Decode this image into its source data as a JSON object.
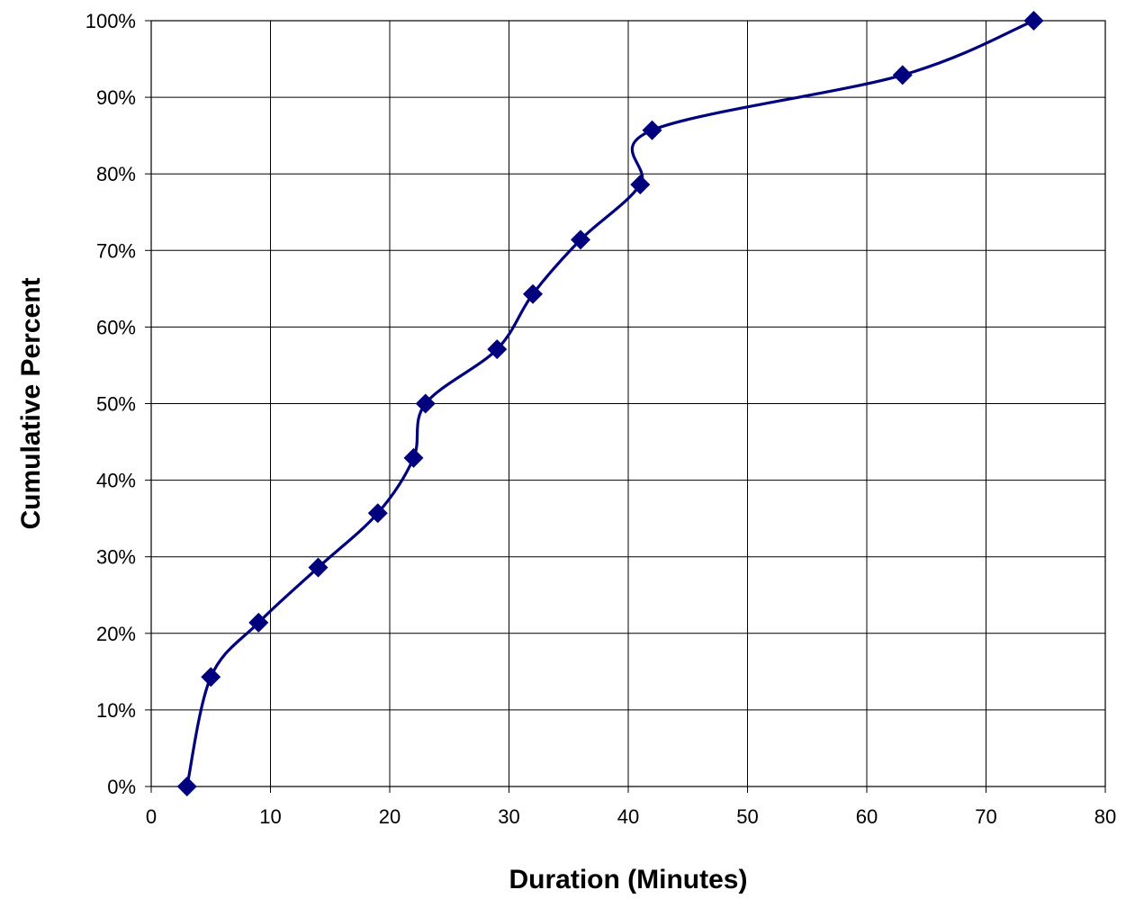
{
  "chart_data": {
    "type": "line",
    "title": "",
    "xlabel": "Duration (Minutes)",
    "ylabel": "Cumulative Percent",
    "xlim": [
      0,
      80
    ],
    "ylim": [
      0,
      100
    ],
    "x_ticks": [
      0,
      10,
      20,
      30,
      40,
      50,
      60,
      70,
      80
    ],
    "y_ticks": [
      0,
      10,
      20,
      30,
      40,
      50,
      60,
      70,
      80,
      90,
      100
    ],
    "y_tick_labels": [
      "0%",
      "10%",
      "20%",
      "30%",
      "40%",
      "50%",
      "60%",
      "70%",
      "80%",
      "90%",
      "100%"
    ],
    "grid": true,
    "legend": "none",
    "marker": "diamond",
    "line_style": "smoothed",
    "series": [
      {
        "color": "#00007f",
        "x": [
          3,
          5,
          9,
          14,
          19,
          22,
          23,
          29,
          32,
          36,
          41,
          42,
          63,
          74
        ],
        "y": [
          0,
          14.3,
          21.4,
          28.6,
          35.7,
          42.9,
          50.0,
          57.1,
          64.3,
          71.4,
          78.6,
          85.7,
          92.9,
          100
        ]
      }
    ]
  }
}
